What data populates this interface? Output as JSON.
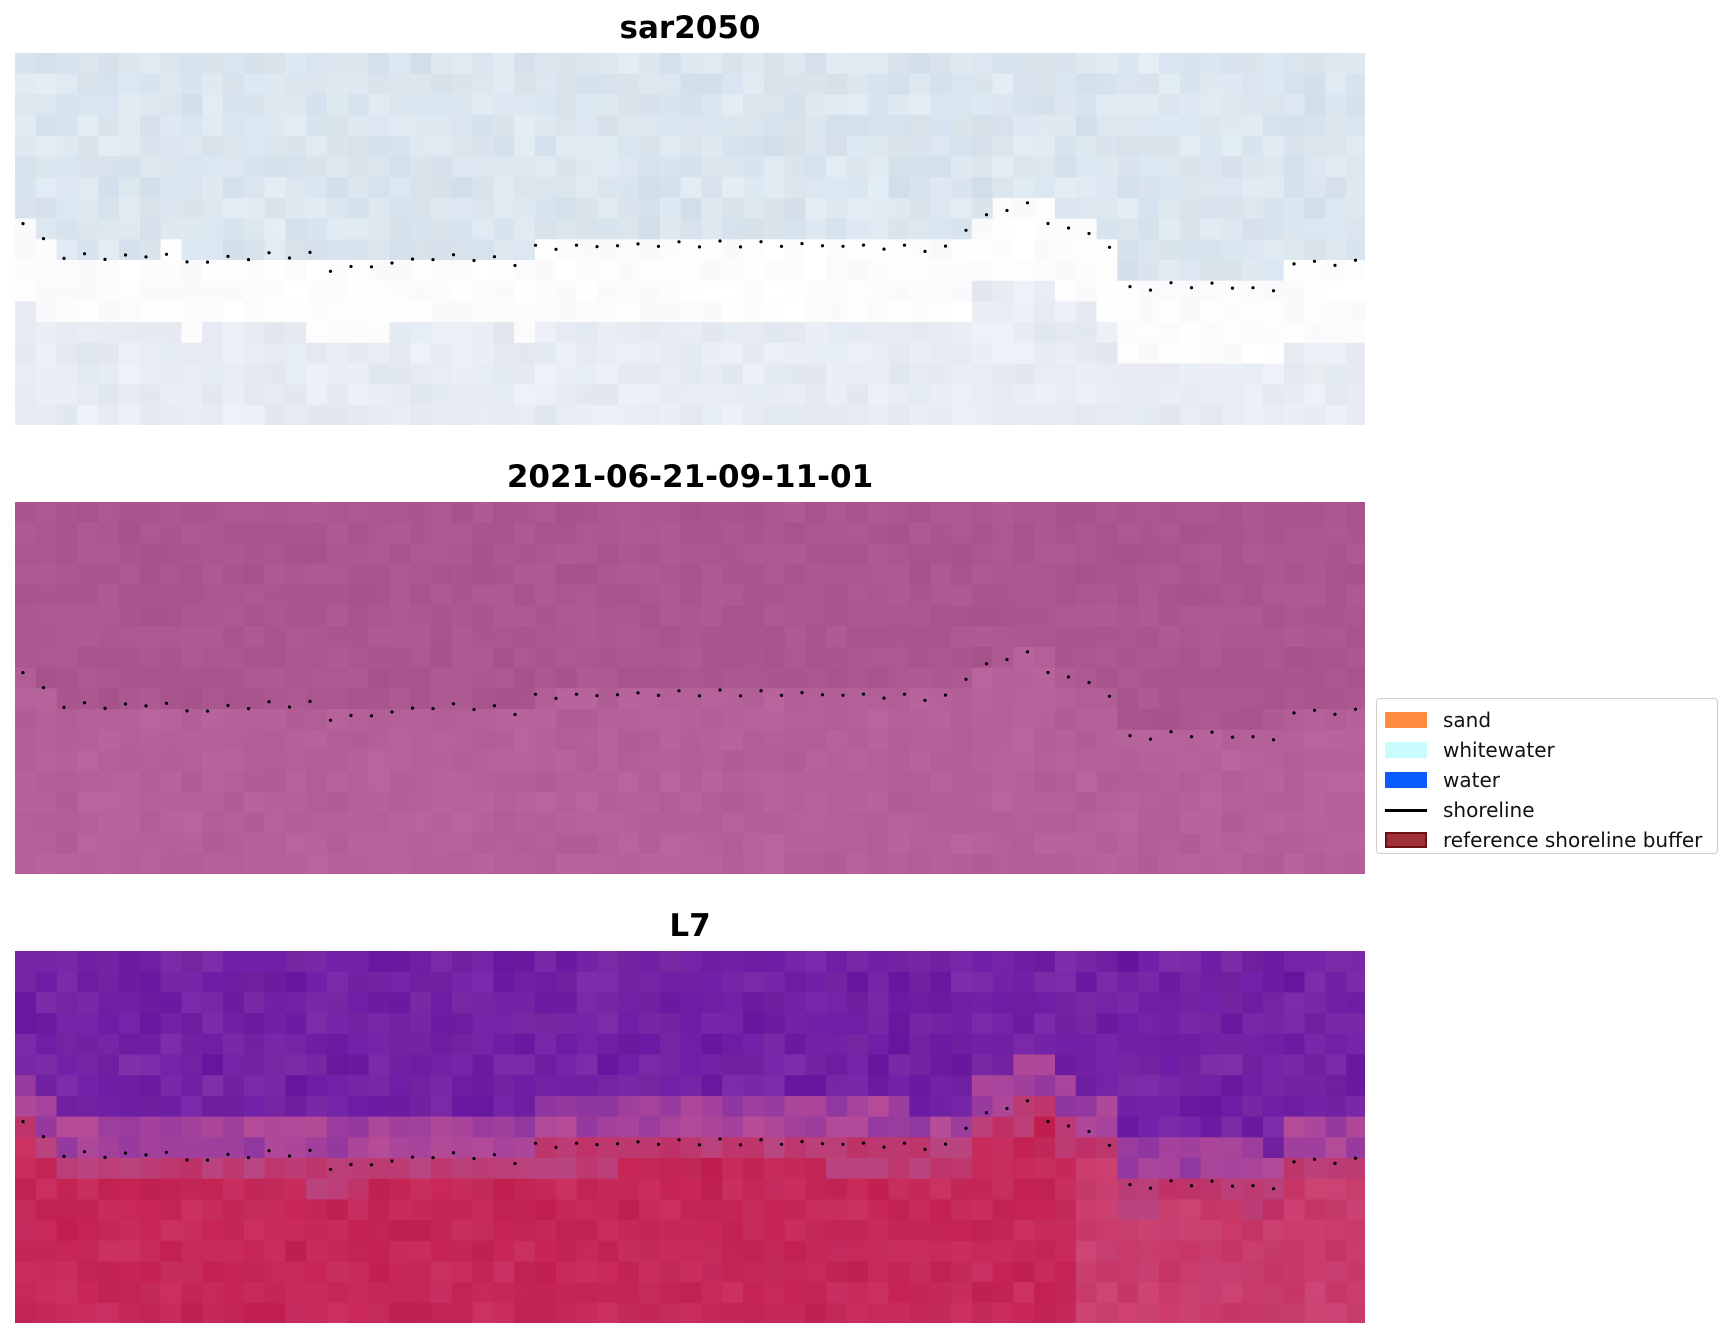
{
  "panels": [
    {
      "title": "sar2050",
      "palette": "sar"
    },
    {
      "title": "2021-06-21-09-11-01",
      "palette": "mauve"
    },
    {
      "title": "L7",
      "palette": "l7"
    }
  ],
  "legend": {
    "items": [
      {
        "label": "sand",
        "kind": "patch",
        "color": "#ff8c3f"
      },
      {
        "label": "whitewater",
        "kind": "patch",
        "color": "#c8fbfb"
      },
      {
        "label": "water",
        "kind": "patch",
        "color": "#0a5cff"
      },
      {
        "label": "shoreline",
        "kind": "line",
        "color": "#000000"
      },
      {
        "label": "reference shoreline buffer",
        "kind": "patch",
        "color": "#9e3036",
        "edge": "#6e0f14"
      }
    ]
  },
  "colors": {
    "sar_sky": "#d6e2ee",
    "sar_beach": "#f1f1f6",
    "mauve": "#ad5b92",
    "l7_water": "#7a2aa5",
    "l7_land": "#c42252",
    "shoreline_dots": "#000000"
  }
}
